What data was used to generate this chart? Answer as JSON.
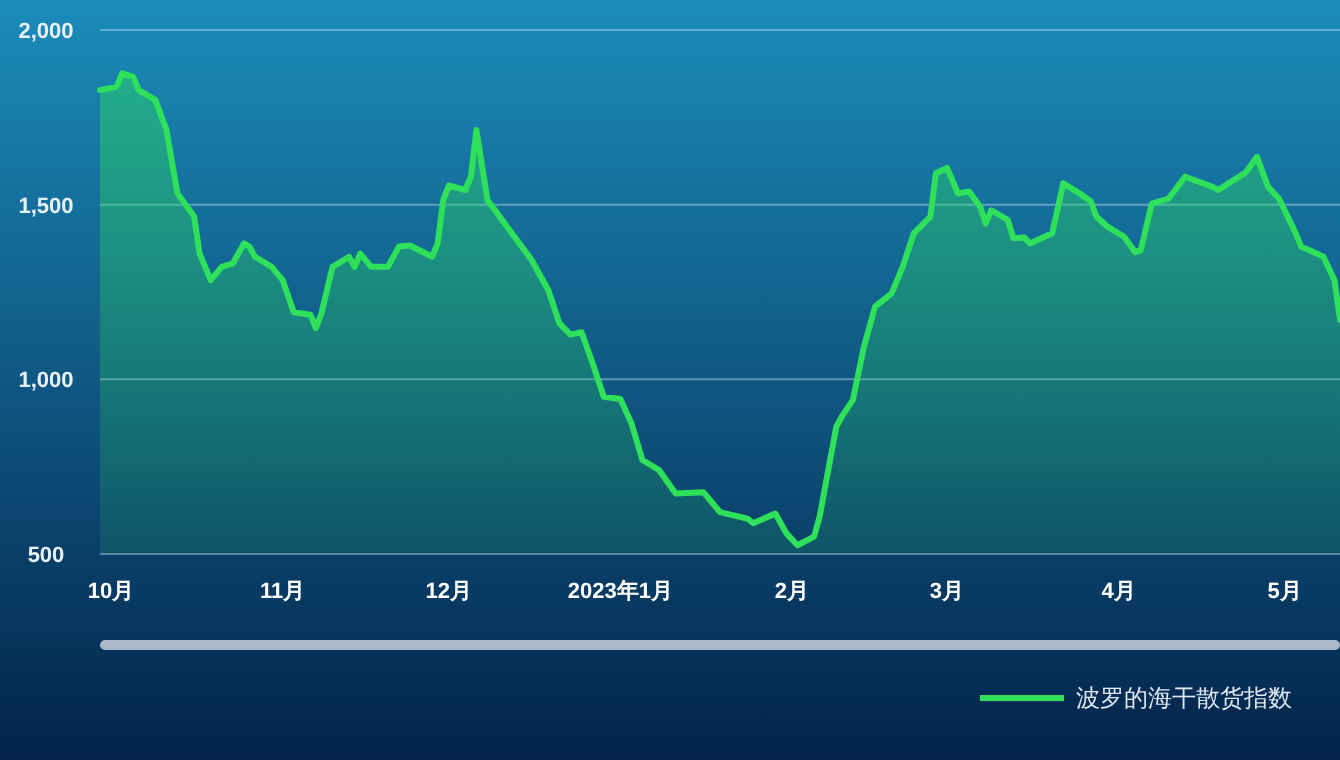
{
  "chart_data": {
    "type": "area",
    "x": [
      "2022-09-29",
      "2022-10-02",
      "2022-10-03",
      "2022-10-05",
      "2022-10-06",
      "2022-10-09",
      "2022-10-11",
      "2022-10-13",
      "2022-10-16",
      "2022-10-17",
      "2022-10-19",
      "2022-10-21",
      "2022-10-23",
      "2022-10-25",
      "2022-10-26",
      "2022-10-27",
      "2022-10-30",
      "2022-11-01",
      "2022-11-03",
      "2022-11-06",
      "2022-11-07",
      "2022-11-08",
      "2022-11-10",
      "2022-11-13",
      "2022-11-14",
      "2022-11-15",
      "2022-11-17",
      "2022-11-20",
      "2022-11-22",
      "2022-11-24",
      "2022-11-28",
      "2022-11-29",
      "2022-11-30",
      "2022-12-01",
      "2022-12-04",
      "2022-12-05",
      "2022-12-06",
      "2022-12-08",
      "2022-12-16",
      "2022-12-19",
      "2022-12-21",
      "2022-12-23",
      "2022-12-25",
      "2022-12-27",
      "2022-12-29",
      "2023-01-01",
      "2023-01-03",
      "2023-01-05",
      "2023-01-08",
      "2023-01-11",
      "2023-01-16",
      "2023-01-19",
      "2023-01-24",
      "2023-01-25",
      "2023-01-29",
      "2023-01-31",
      "2023-02-02",
      "2023-02-05",
      "2023-02-06",
      "2023-02-09",
      "2023-02-10",
      "2023-02-12",
      "2023-02-14",
      "2023-02-16",
      "2023-02-19",
      "2023-02-21",
      "2023-02-23",
      "2023-02-26",
      "2023-02-27",
      "2023-03-01",
      "2023-03-03",
      "2023-03-05",
      "2023-03-07",
      "2023-03-08",
      "2023-03-09",
      "2023-03-12",
      "2023-03-13",
      "2023-03-15",
      "2023-03-16",
      "2023-03-20",
      "2023-03-22",
      "2023-03-25",
      "2023-03-27",
      "2023-03-28",
      "2023-03-30",
      "2023-04-02",
      "2023-04-04",
      "2023-04-05",
      "2023-04-07",
      "2023-04-10",
      "2023-04-13",
      "2023-04-18",
      "2023-04-19",
      "2023-04-24",
      "2023-04-26",
      "2023-04-28",
      "2023-04-30",
      "2023-05-03",
      "2023-05-04",
      "2023-05-08",
      "2023-05-10",
      "2023-05-11"
    ],
    "series": [
      {
        "name": "波罗的海干散货指数",
        "color": "#2ee05a",
        "values": [
          1828,
          1838,
          1876,
          1866,
          1828,
          1800,
          1714,
          1532,
          1466,
          1360,
          1284,
          1322,
          1332,
          1389,
          1380,
          1351,
          1322,
          1284,
          1192,
          1185,
          1147,
          1189,
          1322,
          1351,
          1322,
          1360,
          1322,
          1322,
          1380,
          1383,
          1351,
          1389,
          1513,
          1555,
          1542,
          1580,
          1714,
          1513,
          1341,
          1255,
          1160,
          1128,
          1135,
          1045,
          950,
          944,
          874,
          769,
          740,
          673,
          677,
          620,
          601,
          588,
          616,
          559,
          525,
          550,
          607,
          864,
          893,
          941,
          1093,
          1208,
          1246,
          1322,
          1418,
          1466,
          1590,
          1605,
          1532,
          1538,
          1494,
          1446,
          1484,
          1456,
          1404,
          1406,
          1389,
          1418,
          1561,
          1532,
          1509,
          1466,
          1437,
          1408,
          1364,
          1370,
          1503,
          1517,
          1580,
          1551,
          1542,
          1593,
          1637,
          1551,
          1517,
          1418,
          1380,
          1351,
          1284,
          1170
        ]
      }
    ],
    "xlim": [
      "2022-09-29",
      "2023-05-11"
    ],
    "xticks": [
      {
        "value": "2022-10-01",
        "label": "10月"
      },
      {
        "value": "2022-11-01",
        "label": "11月"
      },
      {
        "value": "2022-12-01",
        "label": "12月"
      },
      {
        "value": "2023-01-01",
        "label": "2023年1月"
      },
      {
        "value": "2023-02-01",
        "label": "2月"
      },
      {
        "value": "2023-03-01",
        "label": "3月"
      },
      {
        "value": "2023-04-01",
        "label": "4月"
      },
      {
        "value": "2023-05-01",
        "label": "5月"
      }
    ],
    "ylim": [
      500,
      2000
    ],
    "yticks": [
      500,
      {
        "value": 1000,
        "label": "1,000"
      },
      {
        "value": 1500,
        "label": "1,500"
      },
      {
        "value": 2000,
        "label": "2,000"
      }
    ],
    "grid": "y",
    "legend": "bottom right",
    "line_style": "solid"
  }
}
